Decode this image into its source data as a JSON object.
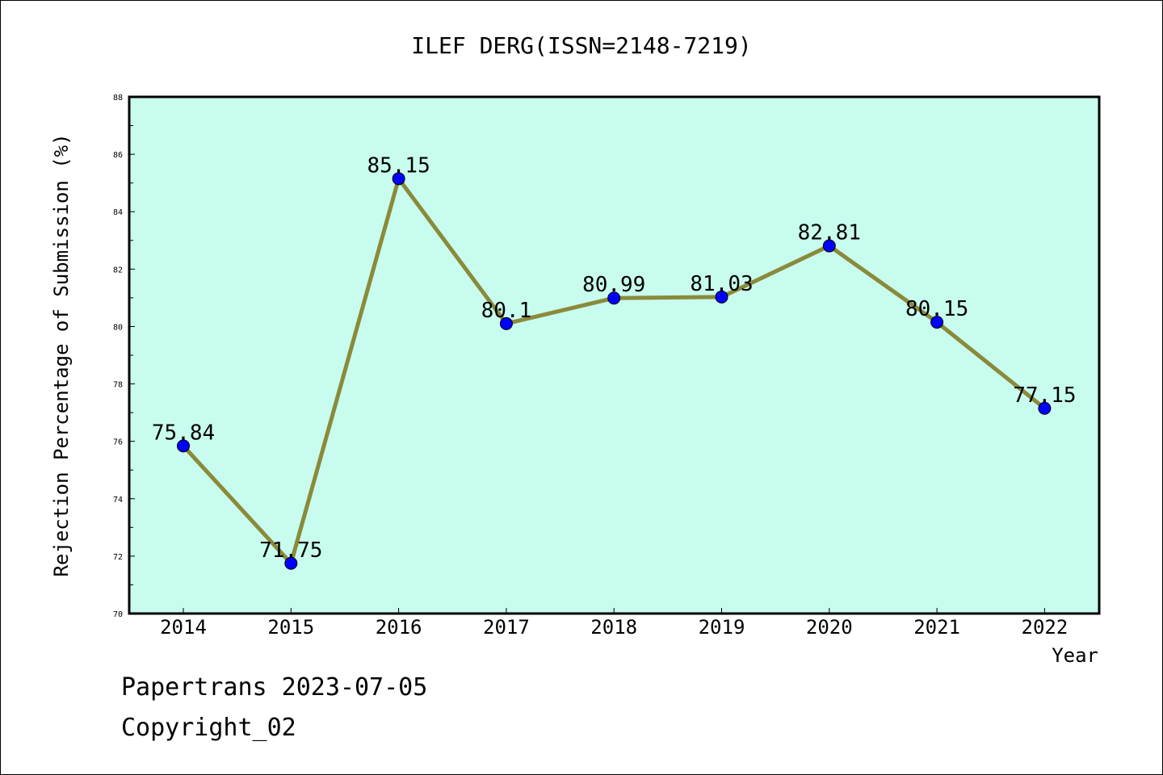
{
  "chart_data": {
    "type": "line",
    "title": "ILEF DERG(ISSN=2148-7219)",
    "xlabel": "Year",
    "ylabel": "Rejection Percentage of Submission (%)",
    "categories": [
      "2014",
      "2015",
      "2016",
      "2017",
      "2018",
      "2019",
      "2020",
      "2021",
      "2022"
    ],
    "series": [
      {
        "values": [
          75.84,
          71.75,
          85.15,
          80.1,
          80.99,
          81.03,
          82.81,
          80.15,
          77.15
        ],
        "labels": [
          "75.84",
          "71.75",
          "85.15",
          "80.1",
          "80.99",
          "81.03",
          "82.81",
          "80.15",
          "77.15"
        ]
      }
    ],
    "ylim": [
      70,
      88
    ],
    "yticks": [
      "70",
      "72",
      "74",
      "76",
      "78",
      "80",
      "82",
      "84",
      "86",
      "88"
    ],
    "grid": false,
    "colors": {
      "plot_background": "#c8fcee",
      "line": "#8a8a3a",
      "marker": "#0000ff"
    }
  },
  "footer": {
    "line1": "Papertrans 2023-07-05",
    "line2": "Copyright_02"
  }
}
